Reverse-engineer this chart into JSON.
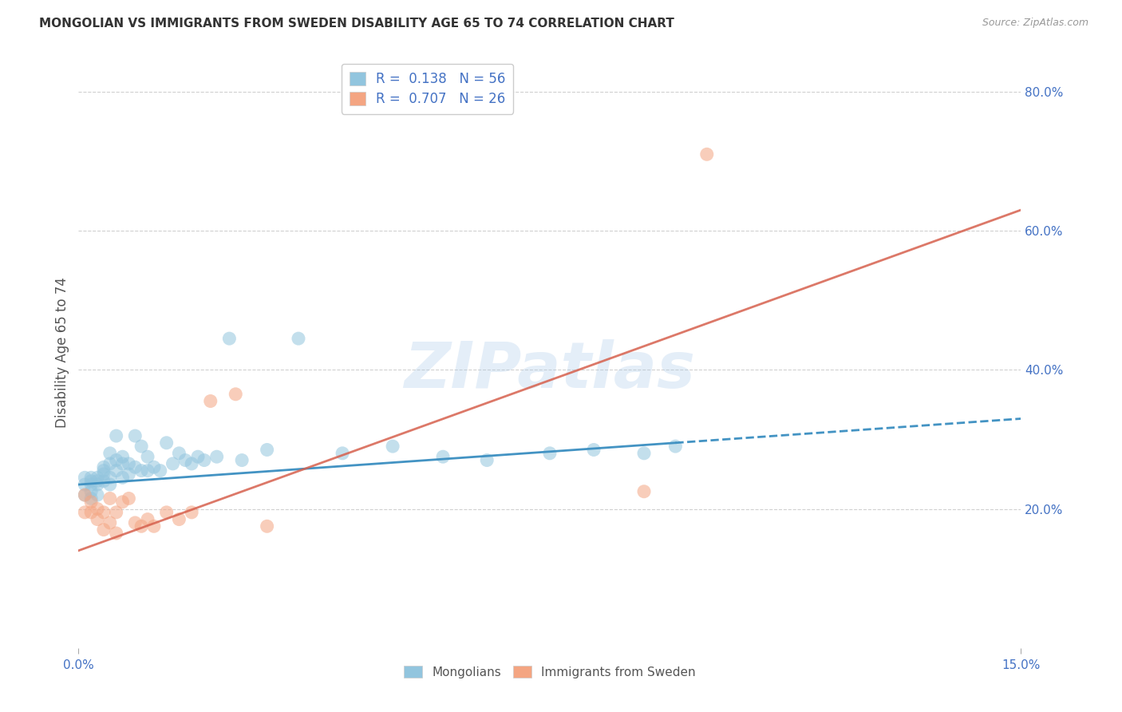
{
  "title": "MONGOLIAN VS IMMIGRANTS FROM SWEDEN DISABILITY AGE 65 TO 74 CORRELATION CHART",
  "source": "Source: ZipAtlas.com",
  "ylabel": "Disability Age 65 to 74",
  "xmin": 0.0,
  "xmax": 0.15,
  "ymin": 0.0,
  "ymax": 0.85,
  "y_tick_labels_right": [
    "20.0%",
    "40.0%",
    "60.0%",
    "80.0%"
  ],
  "y_tick_values_right": [
    0.2,
    0.4,
    0.6,
    0.8
  ],
  "mongolian_R": 0.138,
  "mongolian_N": 56,
  "sweden_R": 0.707,
  "sweden_N": 26,
  "mongolian_color": "#92c5de",
  "sweden_color": "#f4a582",
  "mongolian_line_color": "#4393c3",
  "sweden_line_color": "#d6604d",
  "background_color": "#ffffff",
  "grid_color": "#d0d0d0",
  "watermark": "ZIPatlas",
  "mongolian_line_x0": 0.0,
  "mongolian_line_x1": 0.095,
  "mongolian_line_x_dash_end": 0.15,
  "mongolian_line_y0": 0.235,
  "mongolian_line_y1": 0.295,
  "sweden_line_x0": 0.0,
  "sweden_line_x1": 0.15,
  "sweden_line_y0": 0.14,
  "sweden_line_y1": 0.63,
  "mongolian_x": [
    0.001,
    0.001,
    0.001,
    0.002,
    0.002,
    0.002,
    0.002,
    0.002,
    0.003,
    0.003,
    0.003,
    0.003,
    0.004,
    0.004,
    0.004,
    0.004,
    0.005,
    0.005,
    0.005,
    0.005,
    0.006,
    0.006,
    0.006,
    0.007,
    0.007,
    0.007,
    0.008,
    0.008,
    0.009,
    0.009,
    0.01,
    0.01,
    0.011,
    0.011,
    0.012,
    0.013,
    0.014,
    0.015,
    0.016,
    0.017,
    0.018,
    0.019,
    0.02,
    0.022,
    0.024,
    0.026,
    0.03,
    0.035,
    0.042,
    0.05,
    0.058,
    0.065,
    0.075,
    0.082,
    0.09,
    0.095
  ],
  "mongolian_y": [
    0.235,
    0.22,
    0.245,
    0.24,
    0.235,
    0.225,
    0.215,
    0.245,
    0.24,
    0.245,
    0.235,
    0.22,
    0.255,
    0.24,
    0.26,
    0.25,
    0.245,
    0.235,
    0.28,
    0.265,
    0.27,
    0.255,
    0.305,
    0.265,
    0.245,
    0.275,
    0.25,
    0.265,
    0.26,
    0.305,
    0.255,
    0.29,
    0.275,
    0.255,
    0.26,
    0.255,
    0.295,
    0.265,
    0.28,
    0.27,
    0.265,
    0.275,
    0.27,
    0.275,
    0.445,
    0.27,
    0.285,
    0.445,
    0.28,
    0.29,
    0.275,
    0.27,
    0.28,
    0.285,
    0.28,
    0.29
  ],
  "sweden_x": [
    0.001,
    0.001,
    0.002,
    0.002,
    0.003,
    0.003,
    0.004,
    0.004,
    0.005,
    0.005,
    0.006,
    0.006,
    0.007,
    0.008,
    0.009,
    0.01,
    0.011,
    0.012,
    0.014,
    0.016,
    0.018,
    0.021,
    0.025,
    0.03,
    0.09,
    0.1
  ],
  "sweden_y": [
    0.22,
    0.195,
    0.21,
    0.195,
    0.2,
    0.185,
    0.195,
    0.17,
    0.215,
    0.18,
    0.195,
    0.165,
    0.21,
    0.215,
    0.18,
    0.175,
    0.185,
    0.175,
    0.195,
    0.185,
    0.195,
    0.355,
    0.365,
    0.175,
    0.225,
    0.71
  ]
}
